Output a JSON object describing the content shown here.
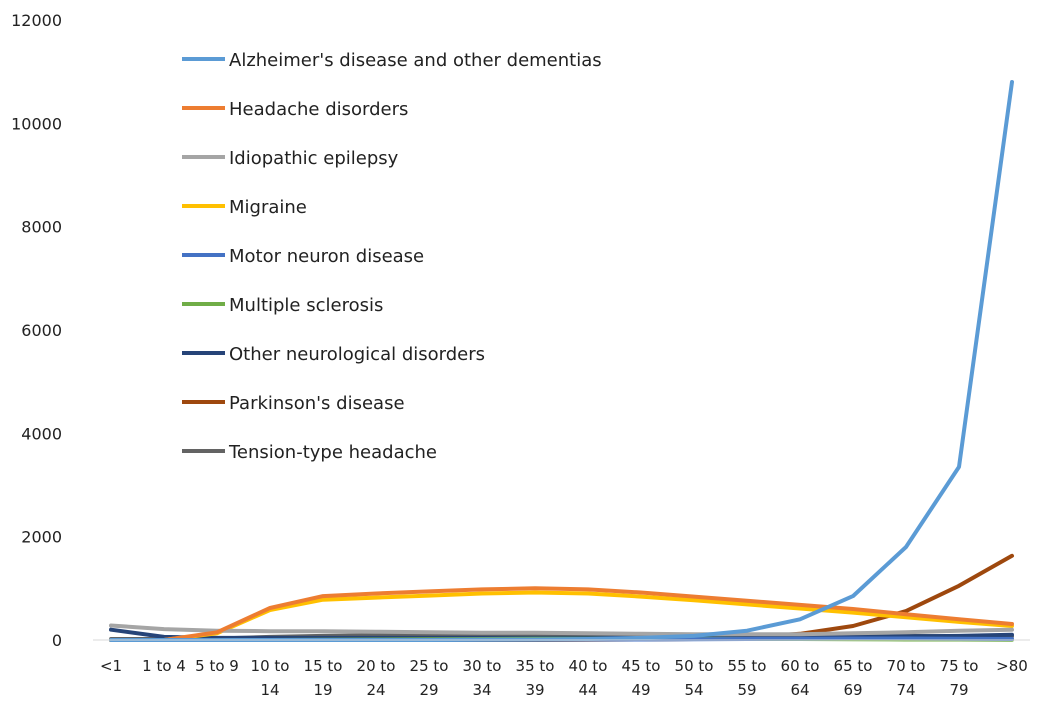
{
  "chart_data": {
    "type": "line",
    "title": "",
    "xlabel": "",
    "ylabel": "",
    "ylim": [
      0,
      12000
    ],
    "yticks": [
      0,
      2000,
      4000,
      6000,
      8000,
      10000,
      12000
    ],
    "grid": false,
    "legend_position": "top-left",
    "categories": [
      [
        "<1"
      ],
      [
        "1 to 4"
      ],
      [
        "5 to 9"
      ],
      [
        "10 to",
        "14"
      ],
      [
        "15 to",
        "19"
      ],
      [
        "20 to",
        "24"
      ],
      [
        "25 to",
        "29"
      ],
      [
        "30 to",
        "34"
      ],
      [
        "35 to",
        "39"
      ],
      [
        "40 to",
        "44"
      ],
      [
        "45 to",
        "49"
      ],
      [
        "50 to",
        "54"
      ],
      [
        "55 to",
        "59"
      ],
      [
        "60 to",
        "64"
      ],
      [
        "65 to",
        "69"
      ],
      [
        "70 to",
        "74"
      ],
      [
        "75 to",
        "79"
      ],
      [
        ">80"
      ]
    ],
    "series": [
      {
        "name": "Alzheimer's disease and other dementias",
        "color": "#5B9BD5",
        "values": [
          0,
          0,
          0,
          0,
          0,
          0,
          0,
          5,
          10,
          20,
          40,
          80,
          180,
          400,
          850,
          1800,
          3350,
          10800
        ]
      },
      {
        "name": "Headache disorders",
        "color": "#ED7D31",
        "values": [
          0,
          0,
          150,
          620,
          850,
          900,
          940,
          980,
          1000,
          980,
          920,
          840,
          760,
          680,
          600,
          500,
          400,
          310
        ]
      },
      {
        "name": "Idiopathic epilepsy",
        "color": "#A5A5A5",
        "values": [
          280,
          210,
          180,
          170,
          170,
          160,
          150,
          140,
          140,
          130,
          120,
          110,
          110,
          110,
          130,
          150,
          180,
          200
        ]
      },
      {
        "name": "Migraine",
        "color": "#FFC000",
        "values": [
          0,
          0,
          130,
          580,
          780,
          820,
          860,
          900,
          920,
          900,
          840,
          770,
          690,
          610,
          530,
          440,
          350,
          270
        ]
      },
      {
        "name": "Motor neuron disease",
        "color": "#4472C4",
        "values": [
          0,
          0,
          0,
          0,
          0,
          0,
          0,
          5,
          5,
          10,
          10,
          15,
          20,
          25,
          30,
          30,
          25,
          20
        ]
      },
      {
        "name": "Multiple sclerosis",
        "color": "#70AD47",
        "values": [
          0,
          0,
          0,
          0,
          5,
          10,
          15,
          20,
          25,
          25,
          25,
          25,
          20,
          20,
          15,
          10,
          10,
          5
        ]
      },
      {
        "name": "Other neurological disorders",
        "color": "#264478",
        "values": [
          200,
          60,
          40,
          40,
          40,
          40,
          40,
          40,
          40,
          40,
          40,
          50,
          50,
          50,
          60,
          70,
          80,
          100
        ]
      },
      {
        "name": "Parkinson's disease",
        "color": "#9E480E",
        "values": [
          0,
          0,
          0,
          0,
          0,
          0,
          0,
          0,
          0,
          5,
          10,
          20,
          50,
          120,
          270,
          560,
          1050,
          1630
        ]
      },
      {
        "name": "Tension-type headache",
        "color": "#636363",
        "values": [
          20,
          20,
          30,
          60,
          80,
          90,
          90,
          100,
          100,
          100,
          100,
          90,
          90,
          90,
          80,
          80,
          70,
          70
        ]
      }
    ]
  }
}
